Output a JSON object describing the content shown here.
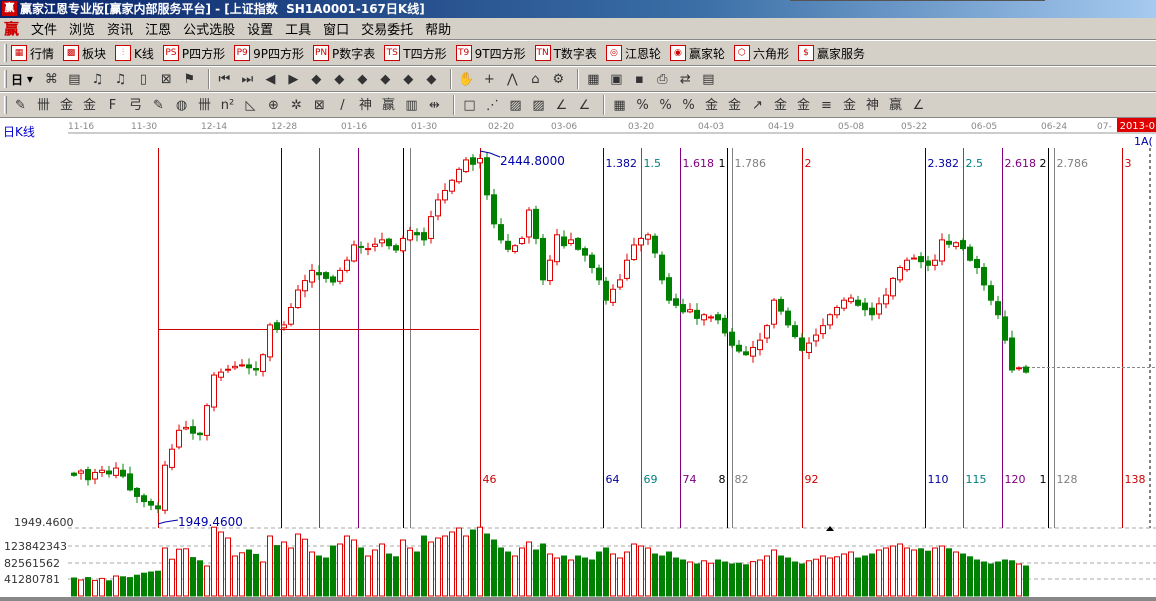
{
  "window": {
    "title": "赢家江恩专业版[赢家内部服务平台] - [上证指数  SH1A0001-167日K线]",
    "logo": "赢"
  },
  "menu": {
    "logo": "赢",
    "items": [
      "文件",
      "浏览",
      "资讯",
      "江恩",
      "公式选股",
      "设置",
      "工具",
      "窗口",
      "交易委托",
      "帮助"
    ]
  },
  "toolbar1": [
    {
      "icon": "quote-grid-icon",
      "glyph": "▦",
      "label": "行情"
    },
    {
      "icon": "sector-blocks-icon",
      "glyph": "▩",
      "label": "板块"
    },
    {
      "icon": "kline-icon",
      "glyph": "⫶",
      "label": "K线"
    },
    {
      "icon": "ps-icon",
      "glyph": "PS",
      "label": "P四方形"
    },
    {
      "icon": "p9-icon",
      "glyph": "P9",
      "label": "9P四方形"
    },
    {
      "icon": "pn-icon",
      "glyph": "PN",
      "label": "P数字表"
    },
    {
      "icon": "ts-icon",
      "glyph": "TS",
      "label": "T四方形"
    },
    {
      "icon": "t9-icon",
      "glyph": "T9",
      "label": "9T四方形"
    },
    {
      "icon": "tn-icon",
      "glyph": "TN",
      "label": "T数字表"
    },
    {
      "icon": "gann-wheel-icon",
      "glyph": "◎",
      "label": "江恩轮"
    },
    {
      "icon": "winner-wheel-icon",
      "glyph": "◉",
      "label": "赢家轮"
    },
    {
      "icon": "hexagon-icon",
      "glyph": "⬡",
      "label": "六角形"
    },
    {
      "icon": "dollar-icon",
      "glyph": "$",
      "label": "赢家服务"
    }
  ],
  "toolbar2": {
    "period": "日",
    "icons": [
      "pattern-icon",
      "clipboard-icon",
      "wave3-icon",
      "wave9-icon",
      "candle-type-icon",
      "gann-icon",
      "flag-icon",
      "first-bar-icon",
      "last-bar-icon",
      "scroll-left-icon",
      "scroll-right-icon",
      "diamond-left-icon",
      "diamond-right-icon",
      "diamond-horizontal-icon",
      "diamond-shrink-icon",
      "diamond-expand-v-icon",
      "diamond-expand-icon",
      "hand-icon",
      "crosshair-icon",
      "line-tool-icon",
      "tower-icon",
      "brain-icon",
      "calendar-icon",
      "chart-window-icon",
      "save-icon",
      "print-icon",
      "trade-icon",
      "graph-icon"
    ],
    "glyphs": [
      "⌘",
      "▤",
      "♫",
      "♫",
      "▯",
      "⊠",
      "⚑",
      "⏮",
      "⏭",
      "◀",
      "▶",
      "◆",
      "◆",
      "◆",
      "◆",
      "◆",
      "◆",
      "✋",
      "+",
      "⋀",
      "⌂",
      "⚙",
      "▦",
      "▣",
      "▪",
      "⎙",
      "⇄",
      "▤"
    ]
  },
  "toolbar3": {
    "icons": [
      "pen-icon",
      "grid-lines-icon",
      "gold-icon",
      "gold2-icon",
      "f-lines-icon",
      "spiral-icon",
      "pen2-icon",
      "circle-grid-icon",
      "grid-lines2-icon",
      "n2-icon",
      "triangle-icon",
      "target-icon",
      "star-icon",
      "web-icon",
      "angle-icon",
      "shen-icon",
      "ying-icon",
      "ruler-icon",
      "width-icon",
      "box-icon",
      "fan-icon",
      "fan-box-icon",
      "fan-box2-icon",
      "angle2-icon",
      "angle3-icon",
      "table-icon",
      "percent-circle-icon",
      "percent-icon",
      "percent2-icon",
      "gold3-icon",
      "gold4-icon",
      "arrow-icon",
      "gold5-icon",
      "gold6-icon",
      "lines-icon",
      "gold7-icon",
      "shen2-icon",
      "ying2-icon",
      "angle4-icon"
    ],
    "glyphs": [
      "✎",
      "卌",
      "金",
      "金",
      "F",
      "弓",
      "✎",
      "◍",
      "卌",
      "n²",
      "◺",
      "⊕",
      "✲",
      "⊠",
      "/",
      "神",
      "赢",
      "▥",
      "⇹",
      "□",
      "⋰",
      "▨",
      "▨",
      "∠",
      "∠",
      "▦",
      "%",
      "%",
      "%",
      "金",
      "金",
      "↗",
      "金",
      "金",
      "≡",
      "金",
      "神",
      "赢",
      "∠"
    ]
  },
  "chart": {
    "period_label": "日K线",
    "date_ticks": [
      "11-16",
      "11-30",
      "12-14",
      "12-28",
      "01-16",
      "01-30",
      "02-20",
      "03-06",
      "03-20",
      "04-03",
      "04-19",
      "05-08",
      "05-22",
      "06-05",
      "06-24",
      "07-"
    ],
    "date_badge": "2013-0",
    "corner_label": "1A(",
    "low_label": "1949.4600",
    "high_label": "2444.8000",
    "low_axis_label": "1949.4600",
    "volume_axis_labels": [
      "123842343",
      "82561562",
      "41280781"
    ],
    "colors": {
      "up": "#e00000",
      "down": "#008000",
      "fib_red": "#d00000",
      "fib_blue": "#0000a0",
      "fib_teal": "#008080",
      "fib_purple": "#800080",
      "fib_black": "#000000",
      "fib_gray": "#808080"
    },
    "horizontal_line_price": 2205.4,
    "current_price_line": 2153
  },
  "chart_data": {
    "type": "candlestick",
    "low": 1949.46,
    "high": 2444.8,
    "close": [
      2004,
      2010,
      1998,
      2008,
      2011,
      2006,
      2014,
      2003,
      1984,
      1975,
      1968,
      1963,
      1958,
      2018,
      2040,
      2066,
      2070,
      2062,
      2060,
      2100,
      2142,
      2146,
      2150,
      2154,
      2156,
      2152,
      2149,
      2170,
      2211,
      2205,
      2211,
      2235,
      2259,
      2272,
      2286,
      2280,
      2275,
      2270,
      2286,
      2300,
      2321,
      2318,
      2316,
      2322,
      2328,
      2320,
      2314,
      2330,
      2341,
      2335,
      2328,
      2360,
      2383,
      2396,
      2410,
      2425,
      2438,
      2432,
      2440,
      2390,
      2350,
      2328,
      2315,
      2320,
      2330,
      2369,
      2330,
      2273,
      2300,
      2335,
      2320,
      2328,
      2315,
      2307,
      2290,
      2273,
      2245,
      2260,
      2273,
      2300,
      2321,
      2330,
      2335,
      2310,
      2273,
      2245,
      2238,
      2229,
      2232,
      2220,
      2225,
      2222,
      2218,
      2200,
      2183,
      2175,
      2170,
      2180,
      2190,
      2210,
      2245,
      2230,
      2211,
      2195,
      2176,
      2186,
      2197,
      2210,
      2225,
      2235,
      2245,
      2248,
      2238,
      2232,
      2225,
      2240,
      2252,
      2275,
      2290,
      2300,
      2303,
      2298,
      2293,
      2300,
      2328,
      2322,
      2324,
      2316,
      2300,
      2290,
      2266,
      2245,
      2225,
      2190,
      2149,
      2152,
      2146
    ],
    "volume": [
      45000000.0,
      40000000.0,
      46000000.0,
      39000000.0,
      44000000.0,
      38000000.0,
      50000000.0,
      48000000.0,
      46000000.0,
      52000000.0,
      57000000.0,
      60000000.0,
      62000000.0,
      120000000.0,
      92000000.0,
      117000000.0,
      118000000.0,
      96000000.0,
      88000000.0,
      75000000.0,
      172000000.0,
      160000000.0,
      145000000.0,
      100000000.0,
      108000000.0,
      115000000.0,
      104000000.0,
      85000000.0,
      150000000.0,
      126000000.0,
      135000000.0,
      120000000.0,
      155000000.0,
      142000000.0,
      110000000.0,
      100000000.0,
      95000000.0,
      125000000.0,
      130000000.0,
      150000000.0,
      140000000.0,
      120000000.0,
      100000000.0,
      115000000.0,
      130000000.0,
      105000000.0,
      98000000.0,
      140000000.0,
      120000000.0,
      110000000.0,
      150000000.0,
      135000000.0,
      145000000.0,
      150000000.0,
      160000000.0,
      170000000.0,
      150000000.0,
      165000000.0,
      172000000.0,
      155000000.0,
      140000000.0,
      120000000.0,
      110000000.0,
      100000000.0,
      120000000.0,
      135000000.0,
      115000000.0,
      130000000.0,
      105000000.0,
      95000000.0,
      100000000.0,
      90000000.0,
      100000000.0,
      95000000.0,
      90000000.0,
      110000000.0,
      120000000.0,
      105000000.0,
      95000000.0,
      110000000.0,
      130000000.0,
      125000000.0,
      120000000.0,
      105000000.0,
      100000000.0,
      110000000.0,
      95000000.0,
      90000000.0,
      85000000.0,
      80000000.0,
      88000000.0,
      82000000.0,
      90000000.0,
      85000000.0,
      80000000.0,
      82000000.0,
      78000000.0,
      86000000.0,
      90000000.0,
      100000000.0,
      115000000.0,
      100000000.0,
      95000000.0,
      85000000.0,
      80000000.0,
      88000000.0,
      92000000.0,
      100000000.0,
      95000000.0,
      98000000.0,
      105000000.0,
      110000000.0,
      95000000.0,
      100000000.0,
      105000000.0,
      115000000.0,
      120000000.0,
      125000000.0,
      130000000.0,
      120000000.0,
      115000000.0,
      118000000.0,
      112000000.0,
      120000000.0,
      125000000.0,
      118000000.0,
      110000000.0,
      105000000.0,
      98000000.0,
      90000000.0,
      85000000.0,
      80000000.0,
      85000000.0,
      90000000.0,
      88000000.0,
      80000000.0,
      75000000.0
    ],
    "fib_time_lines": [
      {
        "day": 0,
        "color": "fib_red",
        "top": "",
        "bottom": ""
      },
      {
        "day": 17.6,
        "color": "fib_blue",
        "top": "",
        "bottom": ""
      },
      {
        "day": 23,
        "color": "fib_teal",
        "top": "",
        "bottom": ""
      },
      {
        "day": 28.5,
        "color": "fib_purple",
        "top": "",
        "bottom": ""
      },
      {
        "day": 35,
        "color": "fib_black",
        "top": "",
        "bottom": ""
      },
      {
        "day": 36,
        "color": "fib_gray",
        "top": "",
        "bottom": ""
      },
      {
        "day": 46,
        "color": "fib_red",
        "top": "",
        "bottom": "46"
      },
      {
        "day": 63.6,
        "color": "fib_blue",
        "top": "1.382",
        "bottom": "64"
      },
      {
        "day": 69,
        "color": "fib_teal",
        "top": "1.5",
        "bottom": "69"
      },
      {
        "day": 74.5,
        "color": "fib_purple",
        "top": "1.618",
        "bottom": "74"
      },
      {
        "day": 81.3,
        "color": "fib_black",
        "top": "1",
        "bottom": "8"
      },
      {
        "day": 82,
        "color": "fib_gray",
        "top": "1.786",
        "bottom": "82"
      },
      {
        "day": 92,
        "color": "fib_red",
        "top": "2",
        "bottom": "92"
      },
      {
        "day": 109.6,
        "color": "fib_blue",
        "top": "2.382",
        "bottom": "110"
      },
      {
        "day": 115,
        "color": "fib_teal",
        "top": "2.5",
        "bottom": "115"
      },
      {
        "day": 120.6,
        "color": "fib_purple",
        "top": "2.618",
        "bottom": "120"
      },
      {
        "day": 127.1,
        "color": "fib_black",
        "top": "2",
        "bottom": "1"
      },
      {
        "day": 128,
        "color": "fib_gray",
        "top": "2.786",
        "bottom": "128"
      },
      {
        "day": 137.7,
        "color": "fib_red",
        "top": "3",
        "bottom": "138"
      }
    ]
  }
}
